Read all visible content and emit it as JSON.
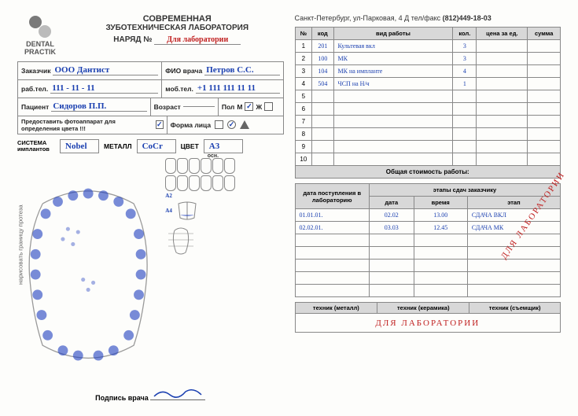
{
  "logo": {
    "line1": "DENTAL",
    "line2": "PRACTIK"
  },
  "title": {
    "line1": "СОВРЕМЕННАЯ",
    "line2": "ЗУБОТЕХНИЧЕСКАЯ ЛАБОРАТОРИЯ",
    "naryad_label": "НАРЯД  №",
    "naryad_value": "Для лаборатории"
  },
  "address": {
    "text": "Санкт-Петербург, ул-Парковая, 4 Д  тел/факс ",
    "phone": "(812)449-18-03"
  },
  "form": {
    "customer_label": "Заказчик",
    "customer_value": "ООО Дантист",
    "doctor_label": "ФИО врача",
    "doctor_value": "Петров С.С.",
    "worktel_label": "раб.тел.",
    "worktel_value": "111 - 11 - 11",
    "mobtel_label": "моб.тел.",
    "mobtel_value": "+1 111 111 11 11",
    "patient_label": "Пациент",
    "patient_value": "Сидоров П.П.",
    "age_label": "Возраст",
    "sex_label": "Пол",
    "sex_m": "М",
    "sex_f": "Ж",
    "photo_label": "Предоставить фотоаппарат для определения цвета !!!",
    "face_label": "Форма лица"
  },
  "system": {
    "implant_label": "СИСТЕМА имплантов",
    "implant_value": "Nobel",
    "metal_label": "МЕТАЛЛ",
    "metal_value": "CoCr",
    "color_label": "ЦВЕТ",
    "color_value": "A3",
    "color_sub": "осн."
  },
  "shades": {
    "a2": "A2",
    "a4": "A4"
  },
  "signature_label": "Подпись врача",
  "work_table": {
    "headers": [
      "№",
      "код",
      "вид работы",
      "кол.",
      "цена за ед.",
      "сумма"
    ],
    "rows": [
      {
        "n": "1",
        "code": "201",
        "work": "Культевая вкл",
        "qty": "3"
      },
      {
        "n": "2",
        "code": "100",
        "work": "МК",
        "qty": "3"
      },
      {
        "n": "3",
        "code": "104",
        "work": "МК на импланте",
        "qty": "4"
      },
      {
        "n": "4",
        "code": "504",
        "work": "ЧСП на Н/ч",
        "qty": "1"
      },
      {
        "n": "5"
      },
      {
        "n": "6"
      },
      {
        "n": "7"
      },
      {
        "n": "8"
      },
      {
        "n": "9"
      },
      {
        "n": "10"
      }
    ],
    "total_label": "Общая стоимость работы:",
    "diagonal": "ДЛЯ ЛАБОРАТОРИИ"
  },
  "dates_table": {
    "header1": "дата поступления в лабораторию",
    "header2": "этапы сдач заказчику",
    "cols": [
      "дата",
      "время",
      "этап"
    ],
    "rows": [
      {
        "in": "01.01.01.",
        "date": "02.02",
        "time": "13.00",
        "stage": "СДАЧА ВКЛ"
      },
      {
        "in": "02.02.01.",
        "date": "03.03",
        "time": "12.45",
        "stage": "СДАЧА МК"
      },
      {},
      {},
      {},
      {},
      {}
    ]
  },
  "tech_table": {
    "headers": [
      "техник (металл)",
      "техник (керамика)",
      "техник (съемщик)"
    ],
    "value": "ДЛЯ ЛАБОРАТОРИИ"
  }
}
